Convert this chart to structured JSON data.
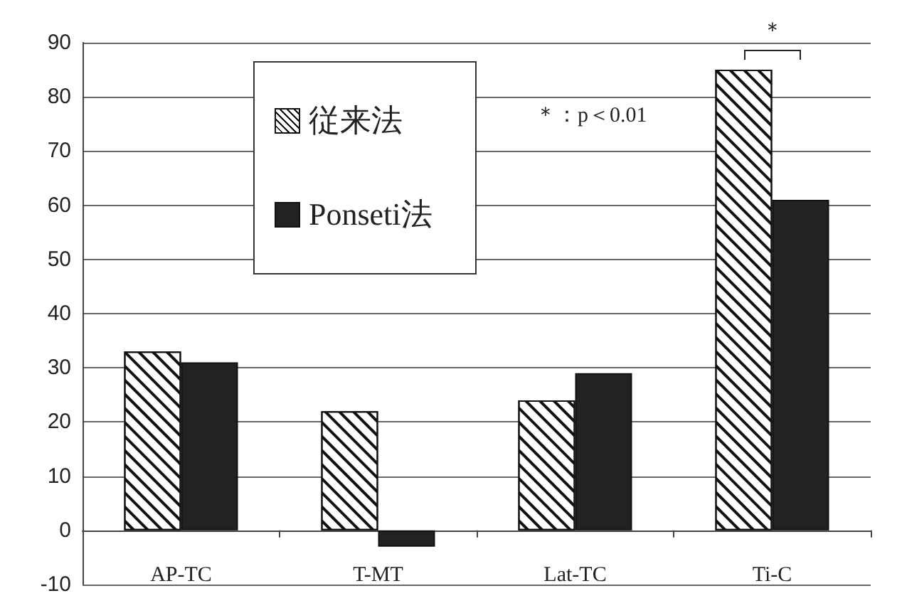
{
  "chart_data": {
    "type": "bar",
    "categories": [
      "AP-TC",
      "T-MT",
      "Lat-TC",
      "Ti-C"
    ],
    "series": [
      {
        "name": "従来法",
        "color": "#ffffff",
        "values": [
          33,
          22,
          24,
          85
        ]
      },
      {
        "name": "Ponseti法",
        "color": "#222222",
        "values": [
          31,
          -3,
          29,
          61
        ]
      }
    ],
    "ylim": [
      -10,
      90
    ],
    "yticks": [
      -10,
      0,
      10,
      20,
      30,
      40,
      50,
      60,
      70,
      80,
      90
    ],
    "grid": "y",
    "legend": "top left",
    "annotations": [
      "＊：p＜0.01",
      "＊"
    ]
  }
}
